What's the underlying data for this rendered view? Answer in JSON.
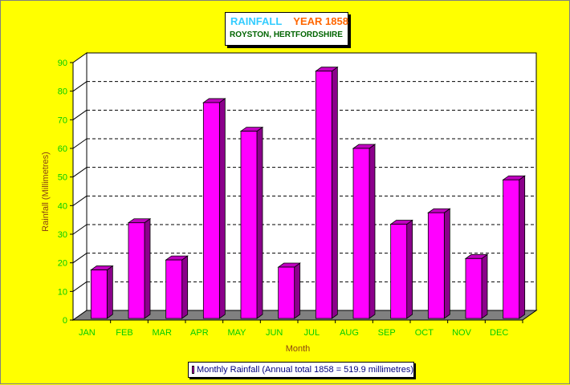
{
  "title": "RAINFALL",
  "title_year": "YEAR 1858",
  "subtitle": "ROYSTON, HERTFORDSHIRE",
  "colors": {
    "background": "#ffff00",
    "bar_front": "#ff00ff",
    "bar_side": "#8b008b",
    "bar_top": "#c000c0",
    "tick_text": "#00cc00",
    "axis_title": "#8b4513",
    "title_main": "#33ccff",
    "title_year": "#ff6600",
    "subtitle": "#006400",
    "legend_text": "#000080"
  },
  "chart_data": {
    "type": "bar",
    "categories": [
      "JAN",
      "FEB",
      "MAR",
      "APR",
      "MAY",
      "JUN",
      "JUL",
      "AUG",
      "SEP",
      "OCT",
      "NOV",
      "DEC"
    ],
    "series": [
      {
        "name": "Monthly Rainfall (Annual total 1858 = 519.9 millimetres)",
        "values": [
          17.5,
          34.0,
          21.0,
          76.0,
          66.0,
          18.5,
          87.0,
          60.0,
          33.5,
          37.5,
          21.5,
          49.0
        ]
      }
    ],
    "xlabel": "Month",
    "ylabel": "Rainfall (Millimetres)",
    "ylim": [
      0,
      90
    ],
    "yticks": [
      "0",
      "10",
      "20",
      "30",
      "40",
      "50",
      "60",
      "70",
      "80",
      "90"
    ],
    "grid": true,
    "legend_position": "bottom"
  }
}
